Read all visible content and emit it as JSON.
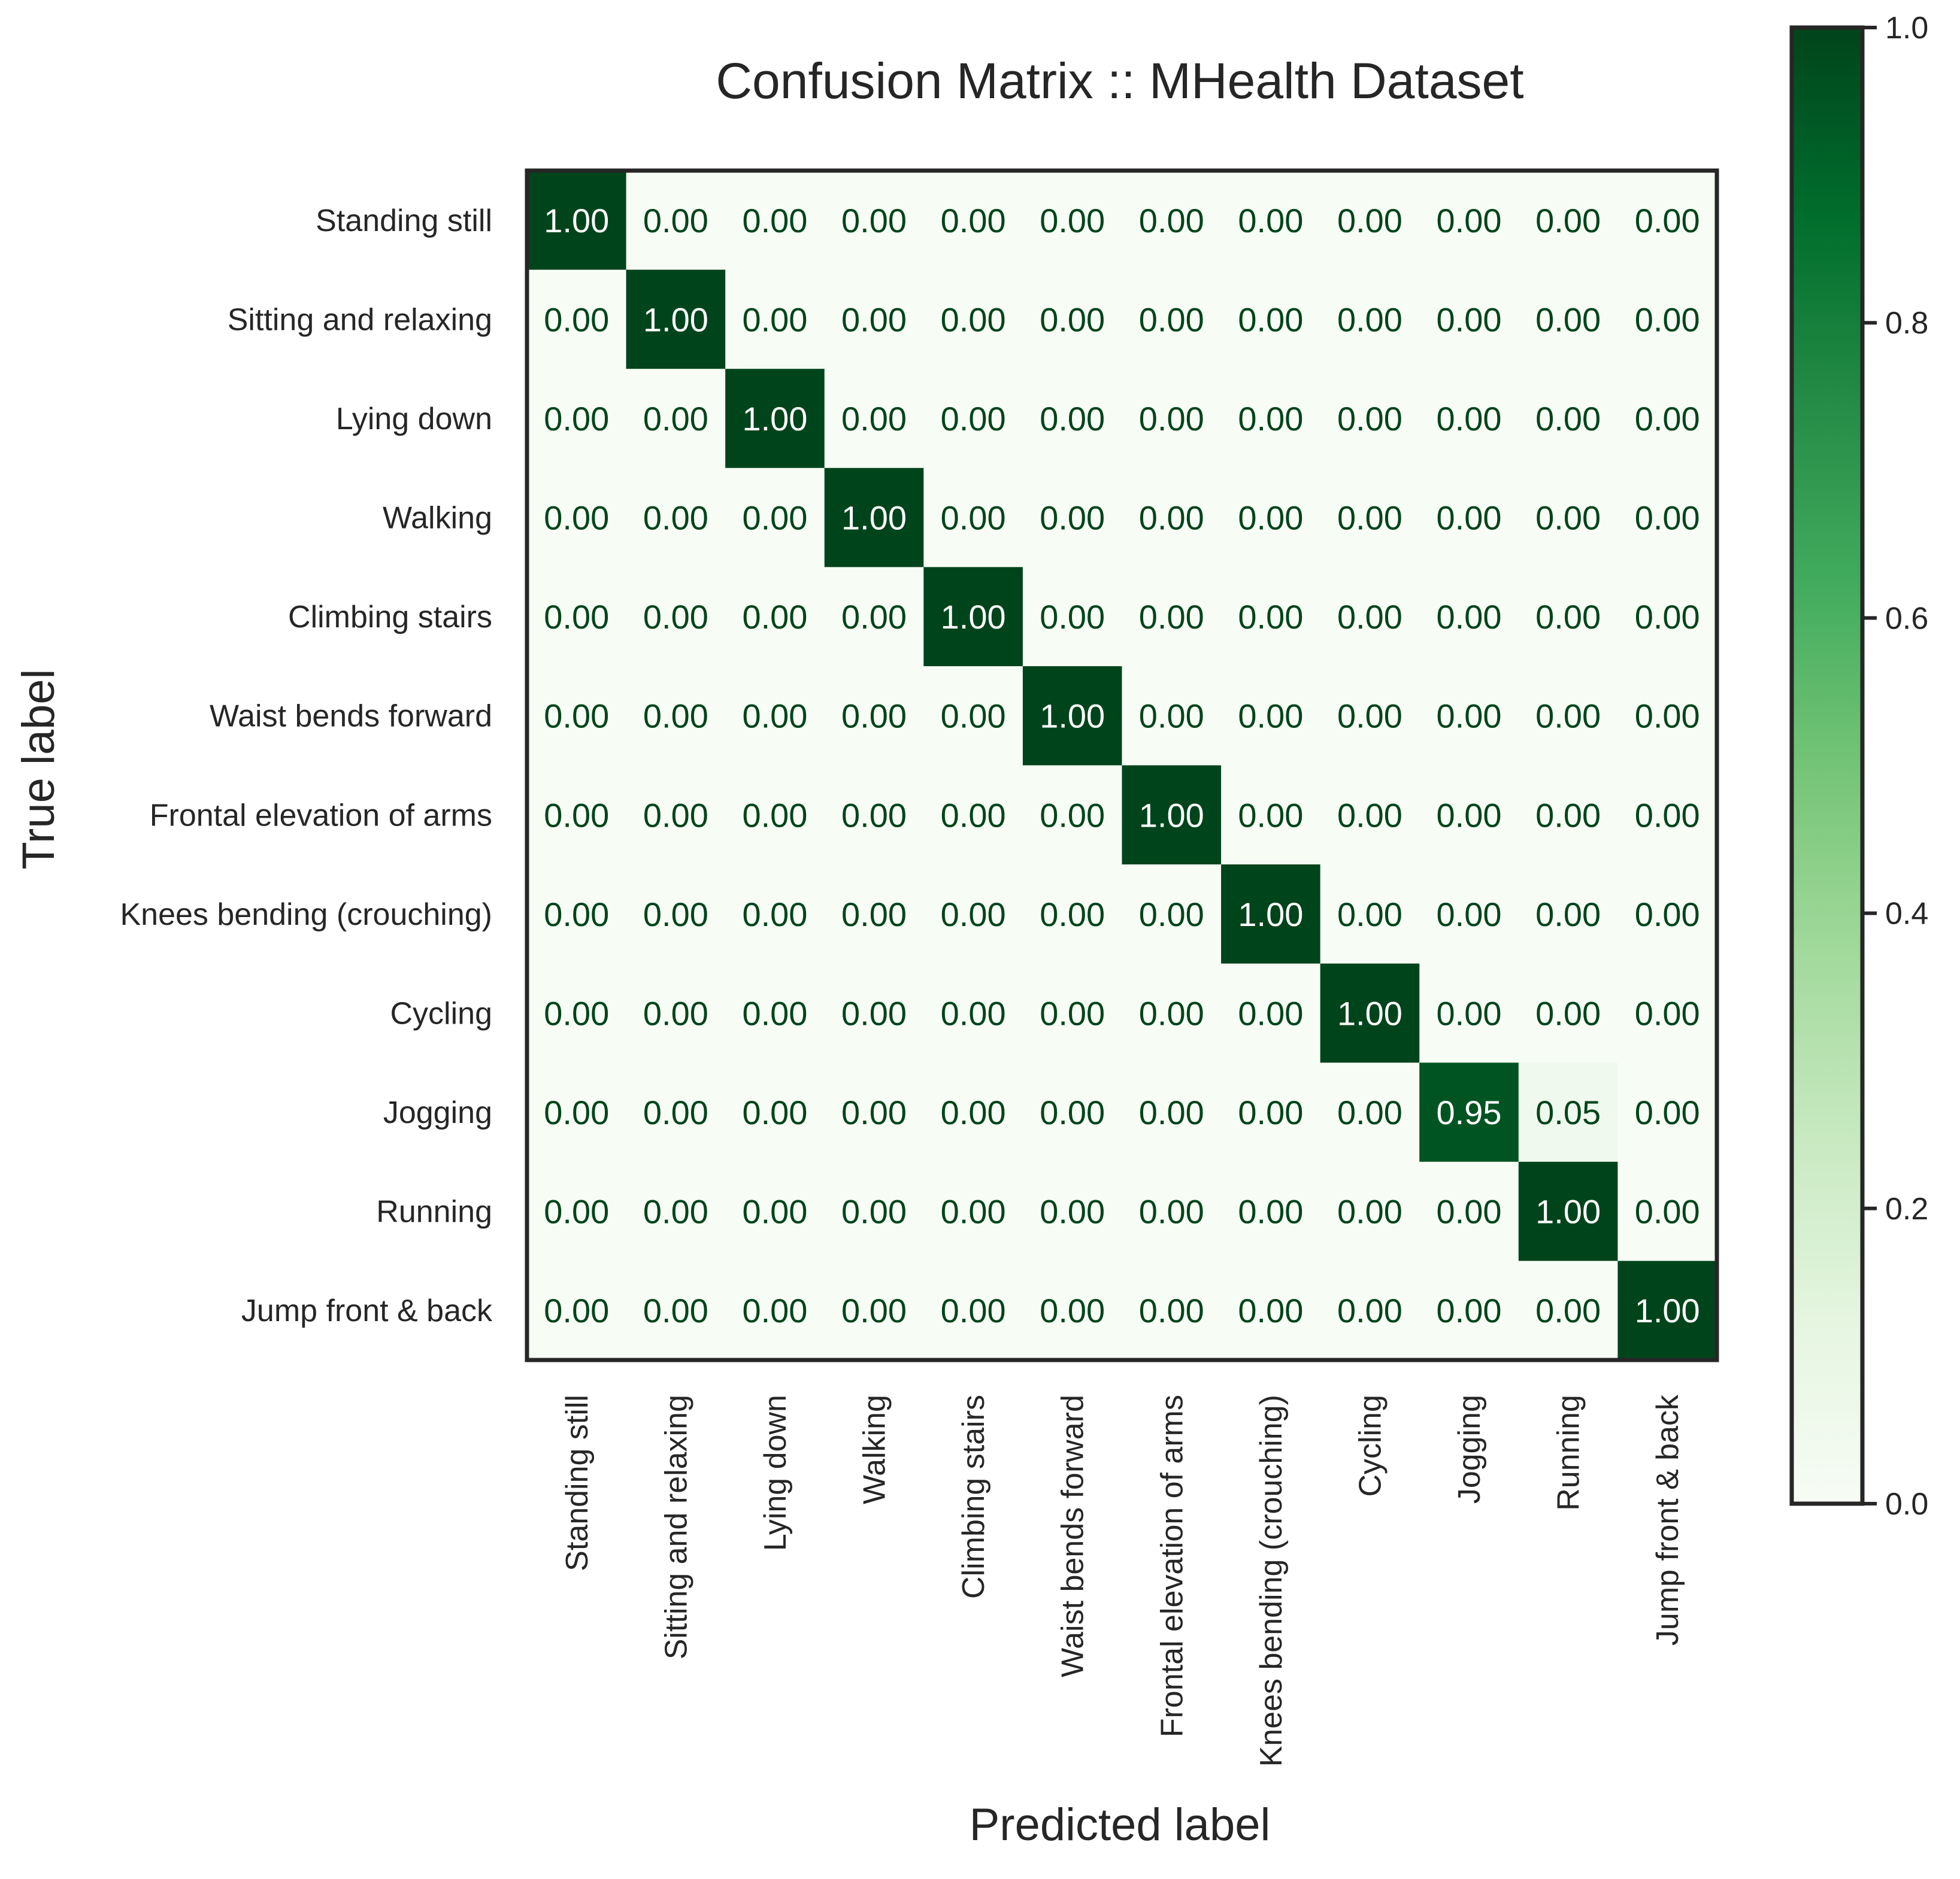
{
  "chart_data": {
    "type": "heatmap",
    "title": "Confusion Matrix :: MHealth Dataset",
    "xlabel": "Predicted label",
    "ylabel": "True label",
    "labels": [
      "Standing still",
      "Sitting and relaxing",
      "Lying down",
      "Walking",
      "Climbing stairs",
      "Waist bends forward",
      "Frontal elevation of arms",
      "Knees bending (crouching)",
      "Cycling",
      "Jogging",
      "Running",
      "Jump front & back"
    ],
    "matrix": [
      [
        1.0,
        0.0,
        0.0,
        0.0,
        0.0,
        0.0,
        0.0,
        0.0,
        0.0,
        0.0,
        0.0,
        0.0
      ],
      [
        0.0,
        1.0,
        0.0,
        0.0,
        0.0,
        0.0,
        0.0,
        0.0,
        0.0,
        0.0,
        0.0,
        0.0
      ],
      [
        0.0,
        0.0,
        1.0,
        0.0,
        0.0,
        0.0,
        0.0,
        0.0,
        0.0,
        0.0,
        0.0,
        0.0
      ],
      [
        0.0,
        0.0,
        0.0,
        1.0,
        0.0,
        0.0,
        0.0,
        0.0,
        0.0,
        0.0,
        0.0,
        0.0
      ],
      [
        0.0,
        0.0,
        0.0,
        0.0,
        1.0,
        0.0,
        0.0,
        0.0,
        0.0,
        0.0,
        0.0,
        0.0
      ],
      [
        0.0,
        0.0,
        0.0,
        0.0,
        0.0,
        1.0,
        0.0,
        0.0,
        0.0,
        0.0,
        0.0,
        0.0
      ],
      [
        0.0,
        0.0,
        0.0,
        0.0,
        0.0,
        0.0,
        1.0,
        0.0,
        0.0,
        0.0,
        0.0,
        0.0
      ],
      [
        0.0,
        0.0,
        0.0,
        0.0,
        0.0,
        0.0,
        0.0,
        1.0,
        0.0,
        0.0,
        0.0,
        0.0
      ],
      [
        0.0,
        0.0,
        0.0,
        0.0,
        0.0,
        0.0,
        0.0,
        0.0,
        1.0,
        0.0,
        0.0,
        0.0
      ],
      [
        0.0,
        0.0,
        0.0,
        0.0,
        0.0,
        0.0,
        0.0,
        0.0,
        0.0,
        0.95,
        0.05,
        0.0
      ],
      [
        0.0,
        0.0,
        0.0,
        0.0,
        0.0,
        0.0,
        0.0,
        0.0,
        0.0,
        0.0,
        1.0,
        0.0
      ],
      [
        0.0,
        0.0,
        0.0,
        0.0,
        0.0,
        0.0,
        0.0,
        0.0,
        0.0,
        0.0,
        0.0,
        1.0
      ]
    ],
    "value_format": "0.00",
    "colormap": "Greens",
    "colormap_stops": [
      "#f7fcf5",
      "#e5f5e0",
      "#c7e9c0",
      "#a1d99b",
      "#74c476",
      "#41ab5d",
      "#238b45",
      "#006d2c",
      "#00441b"
    ],
    "vlim": [
      0.0,
      1.0
    ],
    "colorbar": {
      "ticks": [
        0.0,
        0.2,
        0.4,
        0.6,
        0.8,
        1.0
      ],
      "tick_labels": [
        "0.0",
        "0.2",
        "0.4",
        "0.6",
        "0.8",
        "1.0"
      ]
    },
    "text_color_light": "#ffffff",
    "text_color_dark": "#00441b",
    "label_color": "#262626",
    "frame_color": "#262626"
  }
}
